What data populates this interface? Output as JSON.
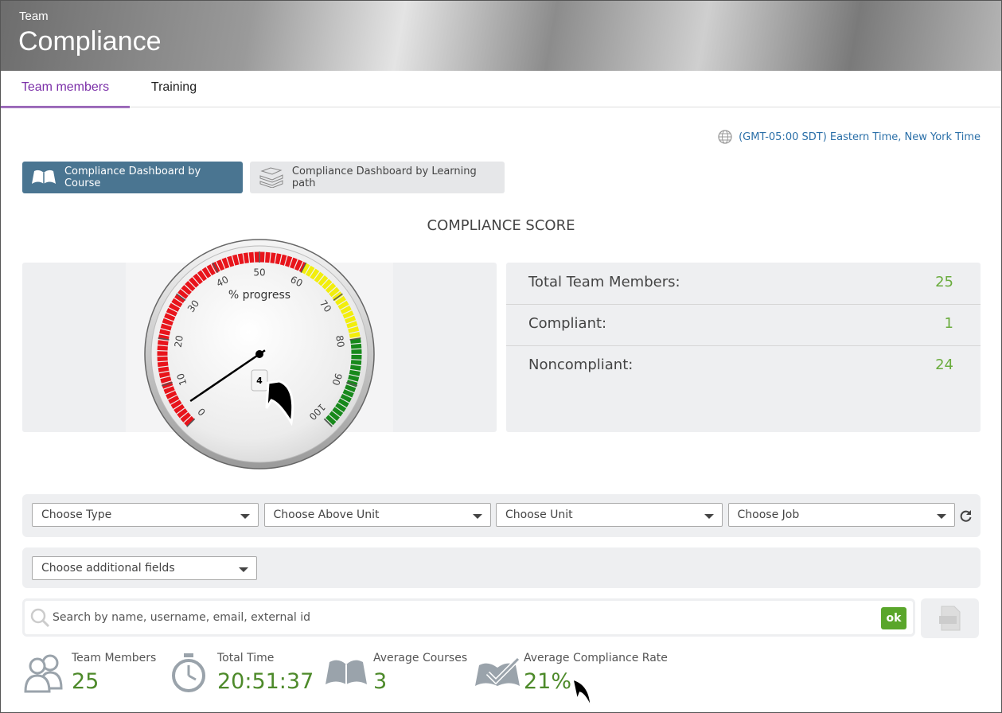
{
  "header": {
    "subtitle": "Team",
    "title": "Compliance"
  },
  "tabs": [
    "Team members",
    "Training"
  ],
  "timezone": "(GMT-05:00 SDT) Eastern Time, New York Time",
  "dashboard_buttons": [
    "Compliance Dashboard by Course",
    "Compliance Dashboard by Learning path"
  ],
  "section_title": "COMPLIANCE SCORE",
  "gauge": {
    "label": "% progress",
    "value": 4,
    "range": [
      0,
      100
    ],
    "ticks": [
      0,
      10,
      20,
      30,
      40,
      50,
      60,
      70,
      80,
      90,
      100
    ],
    "bands": [
      {
        "from": 0,
        "to": 60,
        "color": "#e8141b"
      },
      {
        "from": 60,
        "to": 80,
        "color": "#f2ee0c"
      },
      {
        "from": 80,
        "to": 100,
        "color": "#17891b"
      }
    ]
  },
  "summary": [
    {
      "label": "Total Team Members:",
      "value": 25
    },
    {
      "label": "Compliant:",
      "value": 1
    },
    {
      "label": "Noncompliant:",
      "value": 24
    }
  ],
  "filters": [
    "Choose Type",
    "Choose Above Unit",
    "Choose Unit",
    "Choose Job"
  ],
  "additional_fields": "Choose additional fields",
  "search": {
    "placeholder": "Search by name, username, email, external id",
    "button": "ok"
  },
  "stats": [
    {
      "label": "Team Members",
      "value": 25
    },
    {
      "label": "Total Time",
      "value": "20:51:37"
    },
    {
      "label": "Average Courses",
      "value": 3
    },
    {
      "label": "Average Compliance Rate",
      "value": "21%"
    }
  ]
}
